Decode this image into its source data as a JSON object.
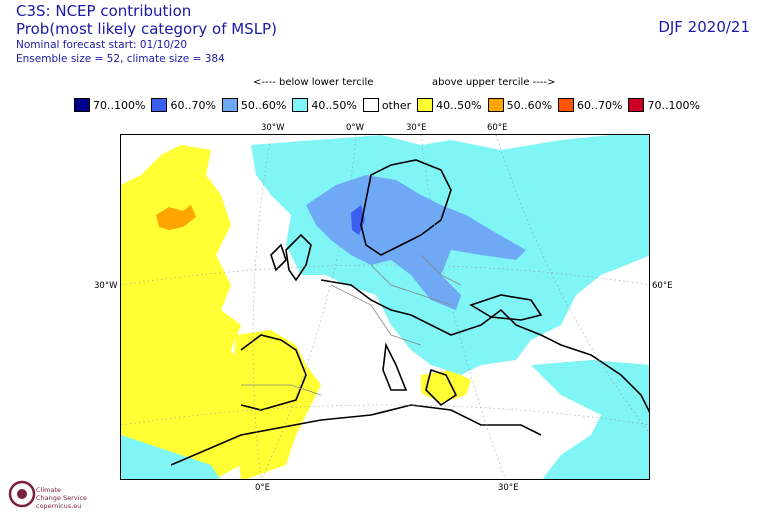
{
  "header": {
    "title_line1": "C3S: NCEP contribution",
    "title_line2": "Prob(most likely category of MSLP)",
    "line3": "Nominal forecast start: 01/10/20",
    "line4": "Ensemble size = 52, climate size = 384",
    "season": "DJF 2020/21"
  },
  "tercile_labels": {
    "below": "<---- below lower tercile",
    "above": "above upper tercile ---->"
  },
  "legend": [
    {
      "label": "70..100%",
      "color": "#00008b"
    },
    {
      "label": "60..70%",
      "color": "#3a5ff0"
    },
    {
      "label": "50..60%",
      "color": "#6fa8f5"
    },
    {
      "label": "40..50%",
      "color": "#7ff5f5"
    },
    {
      "label": "other",
      "color": "#ffffff"
    },
    {
      "label": "40..50%",
      "color": "#ffff33"
    },
    {
      "label": "50..60%",
      "color": "#ffa500"
    },
    {
      "label": "60..70%",
      "color": "#ff5500"
    },
    {
      "label": "70..100%",
      "color": "#cc0022"
    }
  ],
  "axis_labels": {
    "top": [
      "30°W",
      "0°W",
      "30°E",
      "60°E"
    ],
    "left": "30°W",
    "right": "60°E",
    "bottom": [
      "0°E",
      "30°E"
    ]
  },
  "logo": {
    "line1": "Climate",
    "line2": "Change Service",
    "line3": "copernicus.eu"
  }
}
